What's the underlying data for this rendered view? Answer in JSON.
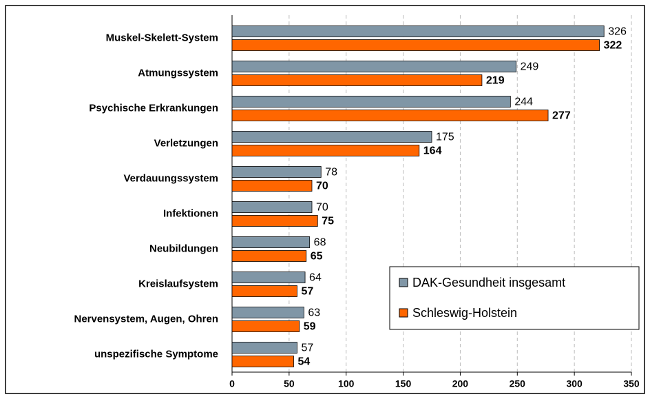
{
  "chart_data": {
    "type": "hbar",
    "categories": [
      "Muskel-Skelett-System",
      "Atmungssystem",
      "Psychische Erkrankungen",
      "Verletzungen",
      "Verdauungssystem",
      "Infektionen",
      "Neubildungen",
      "Kreislaufsystem",
      "Nervensystem, Augen, Ohren",
      "unspezifische Symptome"
    ],
    "series": [
      {
        "name": "DAK-Gesundheit insgesamt",
        "color": "#8096a6",
        "values": [
          326,
          249,
          244,
          175,
          78,
          70,
          68,
          64,
          63,
          57
        ]
      },
      {
        "name": "Schleswig-Holstein",
        "color": "#ff6600",
        "values": [
          322,
          219,
          277,
          164,
          70,
          75,
          65,
          57,
          59,
          54
        ]
      }
    ],
    "xlim": [
      0,
      350
    ],
    "xticks": [
      0,
      50,
      100,
      150,
      200,
      250,
      300,
      350
    ],
    "grid": true,
    "legend": "lower right"
  }
}
